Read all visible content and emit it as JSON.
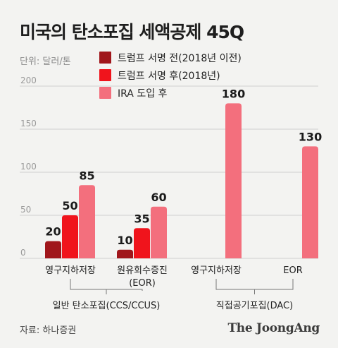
{
  "header": {
    "title": "미국의 탄소포집 세액공제 45Q",
    "unit": "단위: 달러/톤"
  },
  "footer": {
    "source": "자료: 하나증권",
    "brand": "The JoongAng"
  },
  "colors": {
    "before_2018": "#a0161b",
    "after_2018": "#f0141c",
    "after_ira": "#f36f7d",
    "gridline": "#cfcfcf",
    "bracket": "#777777"
  },
  "chart_data": {
    "type": "bar",
    "title": "미국의 탄소포집 세액공제 45Q",
    "ylabel": "단위: 달러/톤",
    "ylim": [
      0,
      200
    ],
    "yticks": [
      0,
      50,
      100,
      150,
      200
    ],
    "grid": true,
    "legend_position": "top",
    "categories": [
      "영구지하저장",
      "원유회수증진\n(EOR)",
      "영구지하저장",
      "EOR"
    ],
    "groups": [
      {
        "name": "일반 탄소포집(CCS/CCUS)",
        "categories": [
          0,
          1
        ]
      },
      {
        "name": "직접공기포집(DAC)",
        "categories": [
          2,
          3
        ]
      }
    ],
    "series": [
      {
        "name": "트럼프 서명 전(2018년 이전)",
        "color": "#a0161b",
        "values": [
          20,
          10,
          null,
          null
        ]
      },
      {
        "name": "트럼프 서명 후(2018년)",
        "color": "#f0141c",
        "values": [
          50,
          35,
          null,
          null
        ]
      },
      {
        "name": "IRA 도입 후",
        "color": "#f36f7d",
        "values": [
          85,
          60,
          180,
          130
        ]
      }
    ]
  }
}
